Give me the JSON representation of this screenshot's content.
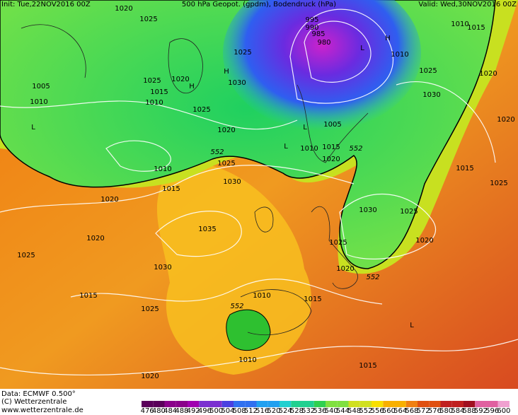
{
  "header": {
    "init": "Init: Tue,22NOV2016 00Z",
    "title": "500 hPa Geopot. (gpdm), Bodendruck (hPa)",
    "valid": "Valid: Wed,30NOV2016 00Z"
  },
  "isobar_labels": [
    1020,
    1025,
    1005,
    1010,
    1025,
    1015,
    1010,
    1020,
    1025,
    1020,
    1025,
    1030,
    995,
    990,
    985,
    980,
    1010,
    1025,
    1030,
    1010,
    1015,
    1020,
    1005,
    1010,
    1015,
    1020,
    1010,
    1015,
    1025,
    1030,
    1020,
    1035,
    1030,
    1020,
    1025,
    1015,
    1025,
    1010,
    1015,
    1010,
    1020,
    1015,
    1030,
    1025,
    1025,
    1020,
    1020,
    1015,
    1025,
    1020
  ],
  "geopotential_labels": [
    552,
    552,
    552,
    552
  ],
  "pressure_centers": [
    "H",
    "H",
    "H",
    "L",
    "L",
    "L",
    "L",
    "L"
  ],
  "footer": {
    "data": "Data: ECMWF   0.500°",
    "copyright": "(C) Wetterzentrale",
    "url": "www.wetterzentrale.de"
  },
  "scale": {
    "labels": [
      476,
      480,
      484,
      488,
      492,
      496,
      500,
      504,
      508,
      512,
      516,
      520,
      524,
      528,
      532,
      536,
      540,
      544,
      548,
      552,
      556,
      560,
      564,
      568,
      572,
      576,
      580,
      584,
      588,
      592,
      596,
      600
    ]
  }
}
